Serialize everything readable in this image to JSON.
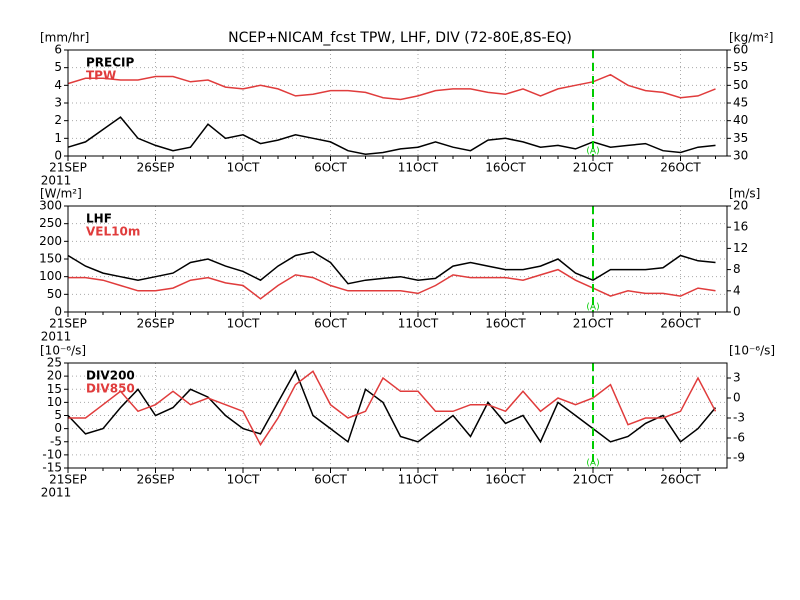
{
  "chart_data": [
    {
      "type": "line",
      "title": "NCEP+NICAM_fcst TPW, LHF, DIV (72-80E,8S-EQ)",
      "y_label": "[mm/hr]",
      "y2_label": "[kg/m²]",
      "year_label": "2011",
      "annotation": {
        "text": "(A)",
        "x": "21OCT",
        "color": "#00cc00"
      },
      "categories": [
        "21SEP",
        null,
        null,
        null,
        null,
        "26SEP",
        null,
        null,
        null,
        null,
        "1OCT",
        null,
        null,
        null,
        null,
        "6OCT",
        null,
        null,
        null,
        null,
        "11OCT",
        null,
        null,
        null,
        null,
        "16OCT",
        null,
        null,
        null,
        null,
        "21OCT",
        null,
        null,
        null,
        null,
        "26OCT",
        null,
        null
      ],
      "ylim": [
        0,
        6
      ],
      "yticks": [
        0,
        1,
        2,
        3,
        4,
        5,
        6
      ],
      "y2lim": [
        30,
        60
      ],
      "y2ticks": [
        30,
        35,
        40,
        45,
        50,
        55,
        60
      ],
      "grid": true,
      "series": [
        {
          "name": "PRECIP",
          "color": "#000000",
          "values": [
            0.5,
            0.8,
            1.5,
            2.2,
            1.0,
            0.6,
            0.3,
            0.5,
            1.8,
            1.0,
            1.2,
            0.7,
            0.9,
            1.2,
            1.0,
            0.8,
            0.3,
            0.1,
            0.2,
            0.4,
            0.5,
            0.8,
            0.5,
            0.3,
            0.9,
            1.0,
            0.8,
            0.5,
            0.6,
            0.4,
            0.8,
            0.5,
            0.6,
            0.7,
            0.3,
            0.2,
            0.5,
            0.6
          ]
        },
        {
          "name": "TPW",
          "color": "#e03c3c",
          "axis": "y2",
          "values": [
            50.5,
            52,
            52,
            51.5,
            51.5,
            52.5,
            52.5,
            51,
            51.5,
            49.5,
            49,
            50,
            49,
            47,
            47.5,
            48.5,
            48.5,
            48,
            46.5,
            46,
            47,
            48.5,
            49,
            49,
            48,
            47.5,
            49,
            47,
            49,
            50,
            51,
            53,
            50,
            48.5,
            48,
            46.5,
            47,
            49
          ]
        }
      ]
    },
    {
      "type": "line",
      "y_label": "[W/m²]",
      "y2_label": "[m/s]",
      "year_label": "2011",
      "annotation": {
        "text": "(A)",
        "x": "21OCT",
        "color": "#00cc00"
      },
      "categories": [
        "21SEP",
        null,
        null,
        null,
        null,
        "26SEP",
        null,
        null,
        null,
        null,
        "1OCT",
        null,
        null,
        null,
        null,
        "6OCT",
        null,
        null,
        null,
        null,
        "11OCT",
        null,
        null,
        null,
        null,
        "16OCT",
        null,
        null,
        null,
        null,
        "21OCT",
        null,
        null,
        null,
        null,
        "26OCT",
        null,
        null
      ],
      "ylim": [
        0,
        300
      ],
      "yticks": [
        0,
        50,
        100,
        150,
        200,
        250,
        300
      ],
      "y2lim": [
        0,
        20
      ],
      "y2ticks": [
        0,
        4,
        8,
        12,
        16,
        20
      ],
      "grid": true,
      "series": [
        {
          "name": "LHF",
          "color": "#000000",
          "values": [
            160,
            130,
            110,
            100,
            90,
            100,
            110,
            140,
            150,
            130,
            115,
            90,
            130,
            160,
            170,
            140,
            80,
            90,
            95,
            100,
            90,
            95,
            130,
            140,
            130,
            120,
            120,
            130,
            150,
            110,
            90,
            120,
            120,
            120,
            125,
            160,
            145,
            140
          ]
        },
        {
          "name": "VEL10m",
          "color": "#e03c3c",
          "axis": "y2",
          "values": [
            6.5,
            6.5,
            6,
            5,
            4,
            4,
            4.5,
            6,
            6.5,
            5.5,
            5,
            2.5,
            5,
            7,
            6.5,
            5,
            4,
            4,
            4,
            4,
            3.5,
            5,
            7,
            6.5,
            6.5,
            6.5,
            6,
            7,
            8,
            6,
            4.5,
            3,
            4,
            3.5,
            3.5,
            3,
            4.5,
            4
          ]
        }
      ]
    },
    {
      "type": "line",
      "y_label": "[10⁻⁶/s]",
      "y2_label": "[10⁻⁶/s]",
      "year_label": "2011",
      "annotation": {
        "text": "(A)",
        "x": "21OCT",
        "color": "#00cc00"
      },
      "categories": [
        "21SEP",
        null,
        null,
        null,
        null,
        "26SEP",
        null,
        null,
        null,
        null,
        "1OCT",
        null,
        null,
        null,
        null,
        "6OCT",
        null,
        null,
        null,
        null,
        "11OCT",
        null,
        null,
        null,
        null,
        "16OCT",
        null,
        null,
        null,
        null,
        "21OCT",
        null,
        null,
        null,
        null,
        "26OCT",
        null,
        null
      ],
      "ylim": [
        -15,
        25
      ],
      "yticks": [
        -15,
        -10,
        -5,
        0,
        5,
        10,
        15,
        20,
        25
      ],
      "y2lim": [
        -10.5,
        5.25
      ],
      "y2ticks": [
        -9,
        -6,
        -3,
        0,
        3
      ],
      "grid": true,
      "series": [
        {
          "name": "DIV200",
          "color": "#000000",
          "values": [
            5,
            -2,
            0,
            8,
            15,
            5,
            8,
            15,
            12,
            5,
            0,
            -2,
            10,
            22,
            5,
            0,
            -5,
            15,
            10,
            -3,
            -5,
            0,
            5,
            -3,
            10,
            2,
            5,
            -5,
            10,
            5,
            0,
            -5,
            -3,
            2,
            5,
            -5,
            0,
            8
          ]
        },
        {
          "name": "DIV850",
          "color": "#e03c3c",
          "axis": "y2",
          "values": [
            -3,
            -3,
            -1,
            1,
            -2,
            -1,
            1,
            -1,
            0,
            -1,
            -2,
            -7,
            -3,
            2,
            4,
            -1,
            -3,
            -2,
            3,
            1,
            1,
            -2,
            -2,
            -1,
            -1,
            -2,
            1,
            -2,
            0,
            -1,
            0,
            2,
            -4,
            -3,
            -3,
            -2,
            3,
            -2
          ]
        }
      ]
    }
  ]
}
